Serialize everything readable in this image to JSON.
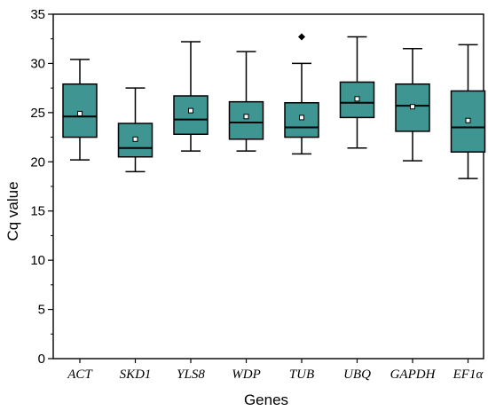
{
  "chart_data": {
    "type": "box",
    "ylabel": "Cq value",
    "xlabel": "Genes",
    "ylim": [
      0,
      35
    ],
    "yticks": [
      0,
      5,
      10,
      15,
      20,
      25,
      30,
      35
    ],
    "grid": false,
    "box_color": "#3f9592",
    "outline_color": "#000000",
    "categories": [
      "ACT",
      "SKD1",
      "YLS8",
      "WDP",
      "TUB",
      "UBQ",
      "GAPDH",
      "EF1α"
    ],
    "boxes": [
      {
        "min": 20.2,
        "q1": 22.5,
        "median": 24.6,
        "q3": 27.9,
        "max": 30.4,
        "mean": 24.9,
        "outliers": []
      },
      {
        "min": 19.0,
        "q1": 20.5,
        "median": 21.4,
        "q3": 23.9,
        "max": 27.5,
        "mean": 22.3,
        "outliers": []
      },
      {
        "min": 21.1,
        "q1": 22.8,
        "median": 24.3,
        "q3": 26.7,
        "max": 32.2,
        "mean": 25.2,
        "outliers": []
      },
      {
        "min": 21.1,
        "q1": 22.3,
        "median": 24.0,
        "q3": 26.1,
        "max": 31.2,
        "mean": 24.6,
        "outliers": []
      },
      {
        "min": 20.8,
        "q1": 22.5,
        "median": 23.5,
        "q3": 26.0,
        "max": 30.0,
        "mean": 24.5,
        "outliers": [
          32.7
        ]
      },
      {
        "min": 21.4,
        "q1": 24.5,
        "median": 26.0,
        "q3": 28.1,
        "max": 32.7,
        "mean": 26.4,
        "outliers": []
      },
      {
        "min": 20.1,
        "q1": 23.1,
        "median": 25.7,
        "q3": 27.9,
        "max": 31.5,
        "mean": 25.6,
        "outliers": []
      },
      {
        "min": 18.3,
        "q1": 21.0,
        "median": 23.5,
        "q3": 27.2,
        "max": 31.9,
        "mean": 24.2,
        "outliers": []
      }
    ]
  }
}
